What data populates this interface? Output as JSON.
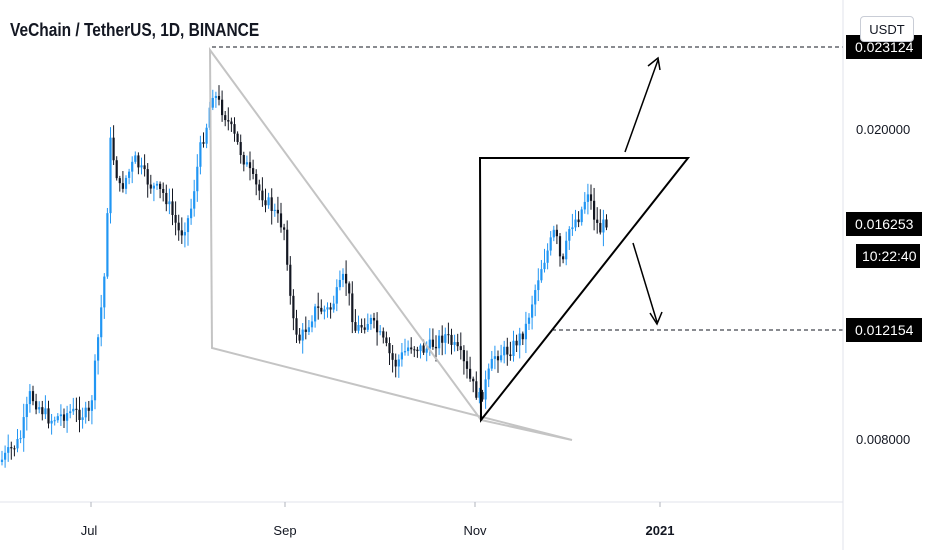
{
  "header": {
    "symbol_title": "VeChain / TetherUS, 1D, BINANCE",
    "currency_button": "USDT"
  },
  "chart_data": {
    "type": "candlestick",
    "title": "VeChain / TetherUS, 1D, BINANCE",
    "x_tick_labels": [
      "Jul",
      "Sep",
      "Nov",
      "2021"
    ],
    "y_tick_labels": [
      "0.008000",
      "0.020000"
    ],
    "price_labels": [
      {
        "value": "0.023124",
        "role": "resistance-level"
      },
      {
        "value": "0.016253",
        "role": "last-price"
      },
      {
        "value": "0.012154",
        "role": "support-level"
      }
    ],
    "countdown": "10:22:40",
    "colors": {
      "up": "#2196f3",
      "down": "#131722",
      "badge": "#000000",
      "wedge": "#c4c4c4",
      "triangle": "#000000"
    },
    "grid": false,
    "drawings": [
      "falling-wedge",
      "ascending-triangle",
      "breakout-arrow-up",
      "breakdown-arrow-down"
    ]
  }
}
